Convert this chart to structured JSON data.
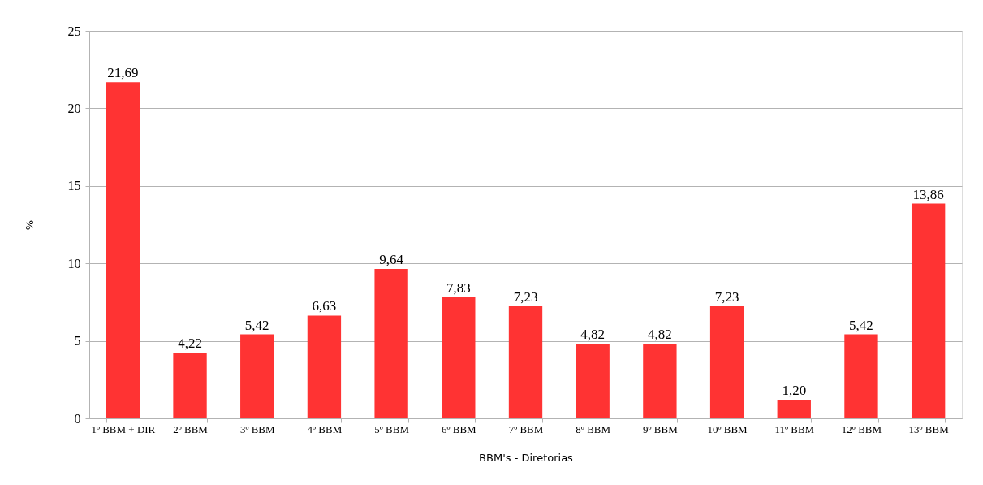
{
  "chart_data": {
    "type": "bar",
    "xlabel": "BBM's - Diretorias",
    "ylabel": "%",
    "categories": [
      "1º BBM + DIR",
      "2º BBM",
      "3º BBM",
      "4º BBM",
      "5º BBM",
      "6º BBM",
      "7º BBM",
      "8º BBM",
      "9º BBM",
      "10º BBM",
      "11º BBM",
      "12º BBM",
      "13º BBM"
    ],
    "values": [
      21.69,
      4.22,
      5.42,
      6.63,
      9.64,
      7.83,
      7.23,
      4.82,
      4.82,
      7.23,
      1.2,
      5.42,
      13.86
    ],
    "value_labels": [
      "21,69",
      "4,22",
      "5,42",
      "6,63",
      "9,64",
      "7,83",
      "7,23",
      "4,82",
      "4,82",
      "7,23",
      "1,20",
      "5,42",
      "13,86"
    ],
    "color": "#ff3333",
    "ylim": [
      0,
      25
    ],
    "yticks": [
      0,
      5,
      10,
      15,
      20,
      25
    ],
    "grid": "y"
  }
}
